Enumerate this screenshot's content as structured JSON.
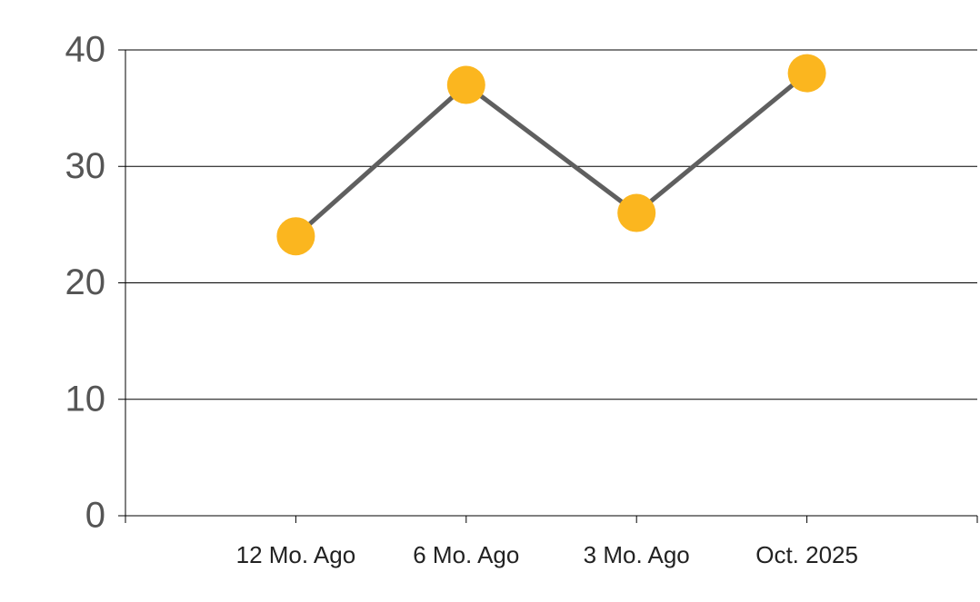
{
  "chart_data": {
    "type": "line",
    "categories": [
      "12 Mo. Ago",
      "6 Mo. Ago",
      "3 Mo. Ago",
      "Oct. 2025"
    ],
    "series": [
      {
        "values": [
          24,
          37,
          26,
          38
        ],
        "color": "#5f5f5f",
        "marker_color": "#fbb61f"
      }
    ],
    "ylim": [
      0,
      40
    ],
    "yticks": [
      0,
      10,
      20,
      30,
      40
    ],
    "grid": true
  }
}
